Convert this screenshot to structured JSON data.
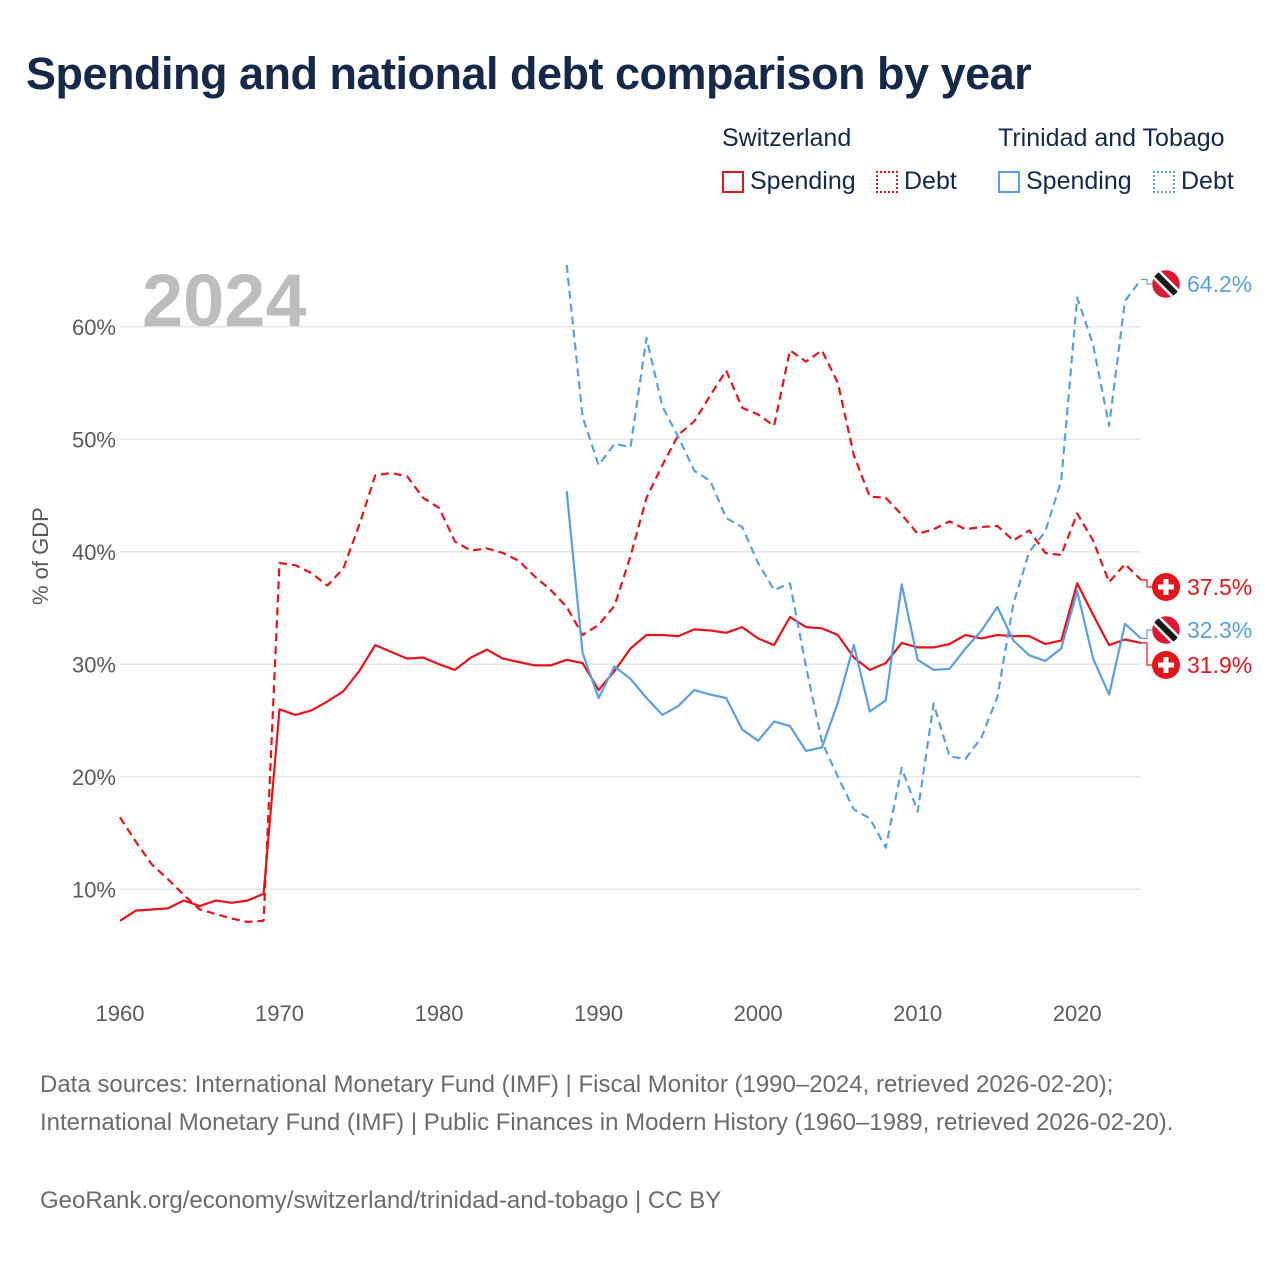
{
  "title": "Spending and national debt comparison by year",
  "legend": {
    "group1": "Switzerland",
    "group2": "Trinidad and Tobago",
    "spending": "Spending",
    "debt": "Debt"
  },
  "year_label": "2024",
  "footer": {
    "sources": "Data sources: International Monetary Fund (IMF) | Fiscal Monitor (1990–2024, retrieved 2026-02-20); International Monetary Fund (IMF) | Public Finances in Modern History (1960–1989, retrieved 2026-02-20).",
    "credit": "GeoRank.org/economy/switzerland/trinidad-and-tobago | CC BY"
  },
  "colors": {
    "switzerland": "#e4141b",
    "trinidad": "#5b9fe0"
  },
  "chart_data": {
    "type": "line",
    "ylabel": "% of GDP",
    "xlim": [
      1960,
      2024
    ],
    "ylim": [
      3,
      67
    ],
    "yticks": [
      10,
      20,
      30,
      40,
      50,
      60
    ],
    "ytick_labels": [
      "10%",
      "20%",
      "30%",
      "40%",
      "50%",
      "60%"
    ],
    "xticks": [
      1960,
      1970,
      1980,
      1990,
      2000,
      2010,
      2020
    ],
    "xtick_labels": [
      "1960",
      "1970",
      "1980",
      "1990",
      "2000",
      "2010",
      "2020"
    ],
    "series": [
      {
        "name": "Switzerland Spending",
        "country": "switzerland",
        "style": "solid",
        "start": 1960,
        "end_label": "31.9%",
        "values": [
          7.2,
          8.1,
          8.2,
          8.3,
          9.0,
          8.5,
          9.0,
          8.8,
          9.0,
          9.6,
          26.0,
          25.5,
          25.9,
          26.7,
          27.6,
          29.4,
          31.7,
          31.1,
          30.5,
          30.6,
          30.0,
          29.5,
          30.6,
          31.3,
          30.5,
          30.2,
          29.9,
          29.9,
          30.4,
          30.1,
          27.7,
          29.4,
          31.4,
          32.6,
          32.6,
          32.5,
          33.1,
          33.0,
          32.8,
          33.3,
          32.3,
          31.7,
          34.2,
          33.3,
          33.2,
          32.6,
          30.6,
          29.5,
          30.1,
          31.9,
          31.5,
          31.5,
          31.8,
          32.6,
          32.3,
          32.6,
          32.5,
          32.5,
          31.8,
          32.1,
          37.2,
          34.4,
          31.7,
          32.2,
          31.9
        ]
      },
      {
        "name": "Switzerland Debt",
        "country": "switzerland",
        "style": "dashed",
        "start": 1960,
        "end_label": "37.5%",
        "values": [
          16.4,
          14.2,
          12.2,
          10.9,
          9.5,
          8.2,
          7.8,
          7.4,
          7.1,
          7.2,
          39.0,
          38.8,
          38.1,
          37.0,
          38.5,
          42.4,
          46.8,
          47.0,
          46.7,
          44.8,
          43.9,
          40.9,
          40.1,
          40.3,
          39.9,
          39.2,
          37.8,
          36.6,
          35.1,
          32.6,
          33.5,
          35.2,
          39.6,
          44.8,
          47.7,
          50.4,
          51.6,
          53.9,
          56.1,
          52.8,
          52.2,
          51.2,
          57.9,
          56.9,
          57.9,
          55.0,
          48.6,
          44.9,
          44.8,
          43.3,
          41.6,
          42.0,
          42.7,
          42.0,
          42.2,
          42.3,
          41.0,
          41.9,
          39.9,
          39.7,
          43.4,
          41.0,
          37.3,
          38.9,
          37.5
        ]
      },
      {
        "name": "Trinidad and Tobago Spending",
        "country": "trinidad",
        "style": "solid",
        "start": 1988,
        "end_label": "32.3%",
        "values": [
          45.4,
          31.0,
          27.0,
          29.8,
          28.7,
          27.0,
          25.5,
          26.3,
          27.7,
          27.3,
          27.0,
          24.2,
          23.2,
          24.9,
          24.5,
          22.3,
          22.6,
          26.6,
          31.7,
          25.8,
          26.8,
          37.1,
          30.4,
          29.5,
          29.6,
          31.4,
          33.0,
          35.1,
          32.1,
          30.8,
          30.3,
          31.4,
          36.5,
          30.5,
          27.3,
          33.6,
          32.3
        ]
      },
      {
        "name": "Trinidad and Tobago Debt",
        "country": "trinidad",
        "style": "dashed",
        "start": 1988,
        "end_label": "64.2%",
        "values": [
          65.5,
          52.0,
          47.7,
          49.6,
          49.3,
          59.0,
          52.9,
          50.2,
          47.2,
          46.3,
          43.0,
          42.2,
          39.0,
          36.6,
          37.2,
          29.8,
          23.1,
          20.0,
          17.1,
          16.3,
          13.7,
          20.8,
          16.9,
          26.5,
          21.8,
          21.6,
          23.5,
          27.1,
          35.4,
          40.0,
          41.8,
          46.3,
          62.6,
          58.4,
          51.2,
          62.3,
          64.2
        ]
      }
    ]
  }
}
